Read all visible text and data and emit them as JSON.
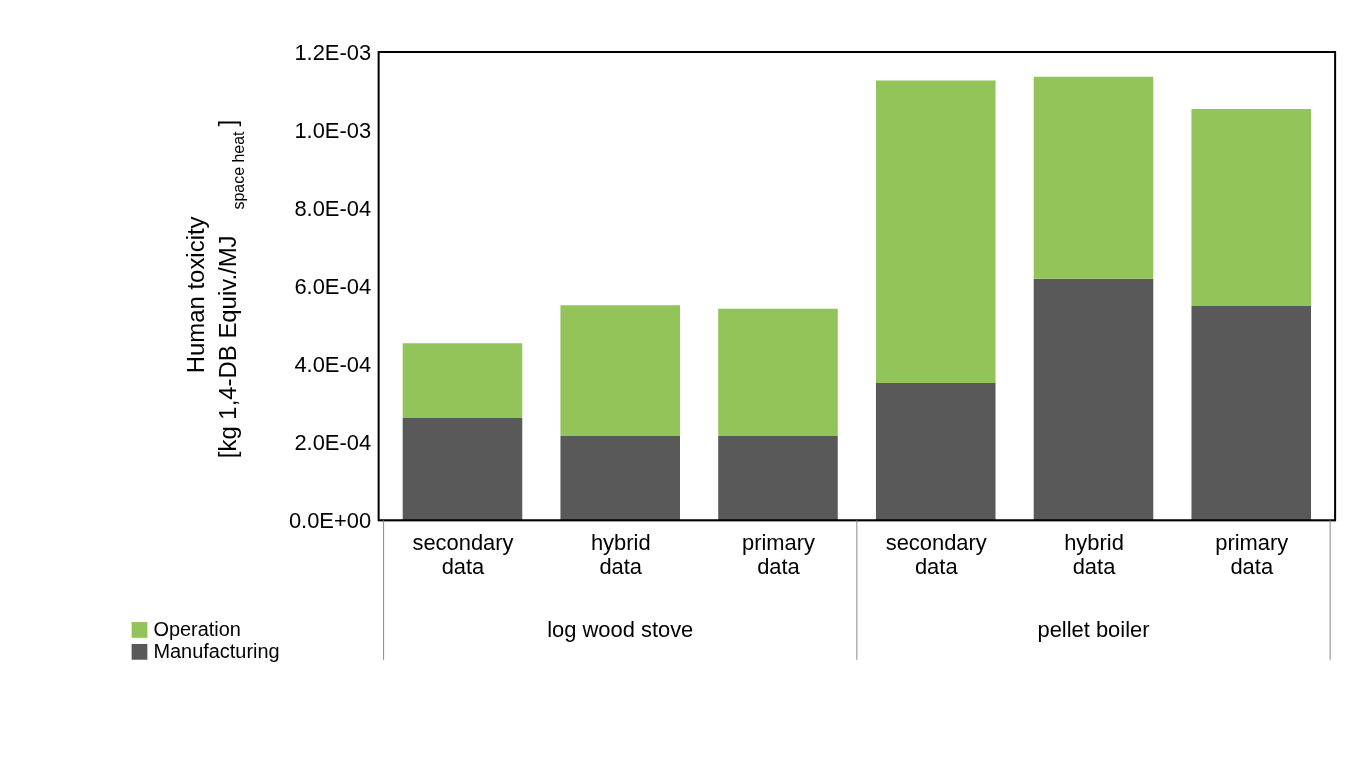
{
  "chart_data": {
    "type": "bar",
    "stacked": true,
    "ylabel": "Human toxicity [kg 1,4-DB Equiv./MJ$_{space heat}$]",
    "categories": [
      "secondary data",
      "hybrid data",
      "primary data",
      "secondary data",
      "hybrid data",
      "primary data"
    ],
    "annotations": [
      "log wood stove",
      "pellet boiler"
    ],
    "series": [
      {
        "name": "Manufacturing",
        "color": "#595959",
        "values": [
          0.000262,
          0.000216,
          0.000216,
          0.000352,
          0.000619,
          0.000549
        ]
      },
      {
        "name": "Operation",
        "color": "#92c45a",
        "values": [
          0.000192,
          0.000335,
          0.000326,
          0.000775,
          0.000518,
          0.000505
        ]
      }
    ],
    "ylim": [
      0,
      0.0012
    ],
    "yticks": [
      {
        "value": 0,
        "label": "0.0E+00"
      },
      {
        "value": 0.0002,
        "label": "2.0E-04"
      },
      {
        "value": 0.0004,
        "label": "4.0E-04"
      },
      {
        "value": 0.0006,
        "label": "6.0E-04"
      },
      {
        "value": 0.0008,
        "label": "8.0E-04"
      },
      {
        "value": 0.001,
        "label": "1.0E-03"
      },
      {
        "value": 0.0012,
        "label": "1.2E-03"
      }
    ],
    "grid": false,
    "legend": "bottom left"
  }
}
